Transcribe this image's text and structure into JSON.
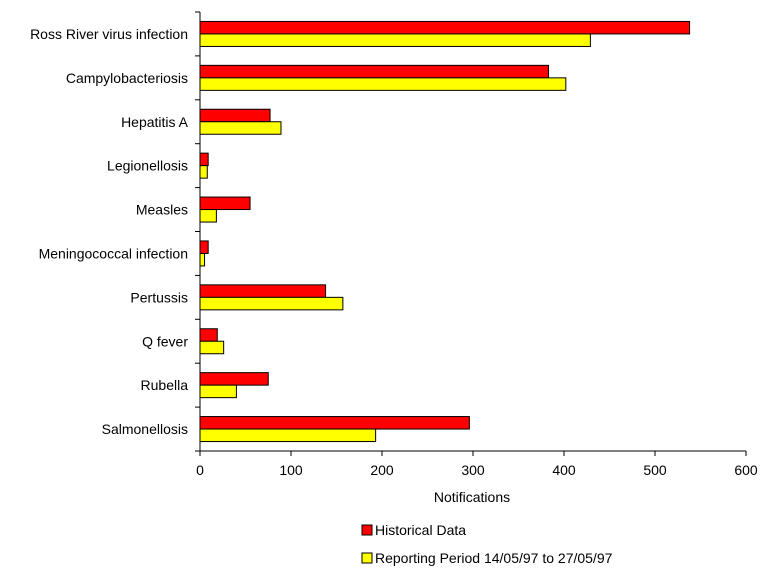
{
  "chart_data": {
    "type": "bar",
    "orientation": "horizontal",
    "categories": [
      "Ross River virus infection",
      "Campylobacteriosis",
      "Hepatitis A",
      "Legionellosis",
      "Measles",
      "Meningococcal infection",
      "Pertussis",
      "Q fever",
      "Rubella",
      "Salmonellosis"
    ],
    "series": [
      {
        "name": "Historical Data",
        "color": "#ff0000",
        "values": [
          538,
          383,
          77,
          9,
          55,
          9,
          138,
          19,
          75,
          296
        ]
      },
      {
        "name": "Reporting Period 14/05/97 to 27/05/97",
        "color": "#ffff00",
        "values": [
          429,
          402,
          89,
          8,
          18,
          5,
          157,
          26,
          40,
          193
        ]
      }
    ],
    "title": "",
    "xlabel": "Notifications",
    "ylabel": "",
    "xlim": [
      0,
      600
    ],
    "xticks": [
      0,
      100,
      200,
      300,
      400,
      500,
      600
    ],
    "grid": false,
    "legend_placement": "bottom"
  }
}
